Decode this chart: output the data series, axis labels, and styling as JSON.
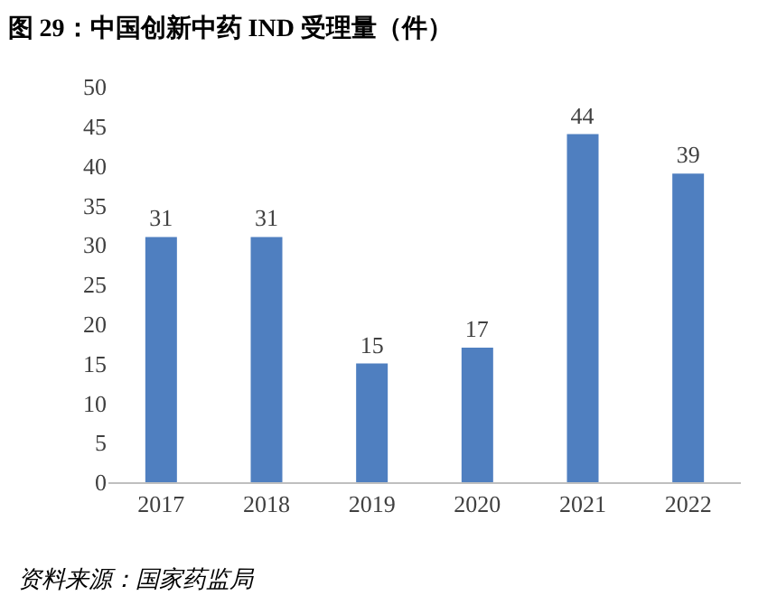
{
  "chart_data": {
    "type": "bar",
    "title": "图 29：中国创新中药 IND 受理量（件）",
    "categories": [
      "2017",
      "2018",
      "2019",
      "2020",
      "2021",
      "2022"
    ],
    "values": [
      31,
      31,
      15,
      17,
      44,
      39
    ],
    "color": "#4f7fc0",
    "ylim": [
      0,
      50
    ],
    "yticks": [
      0,
      5,
      10,
      15,
      20,
      25,
      30,
      35,
      40,
      45,
      50
    ],
    "grid": false,
    "data_labels": true,
    "annotations": [
      "资料来源：国家药监局"
    ]
  }
}
